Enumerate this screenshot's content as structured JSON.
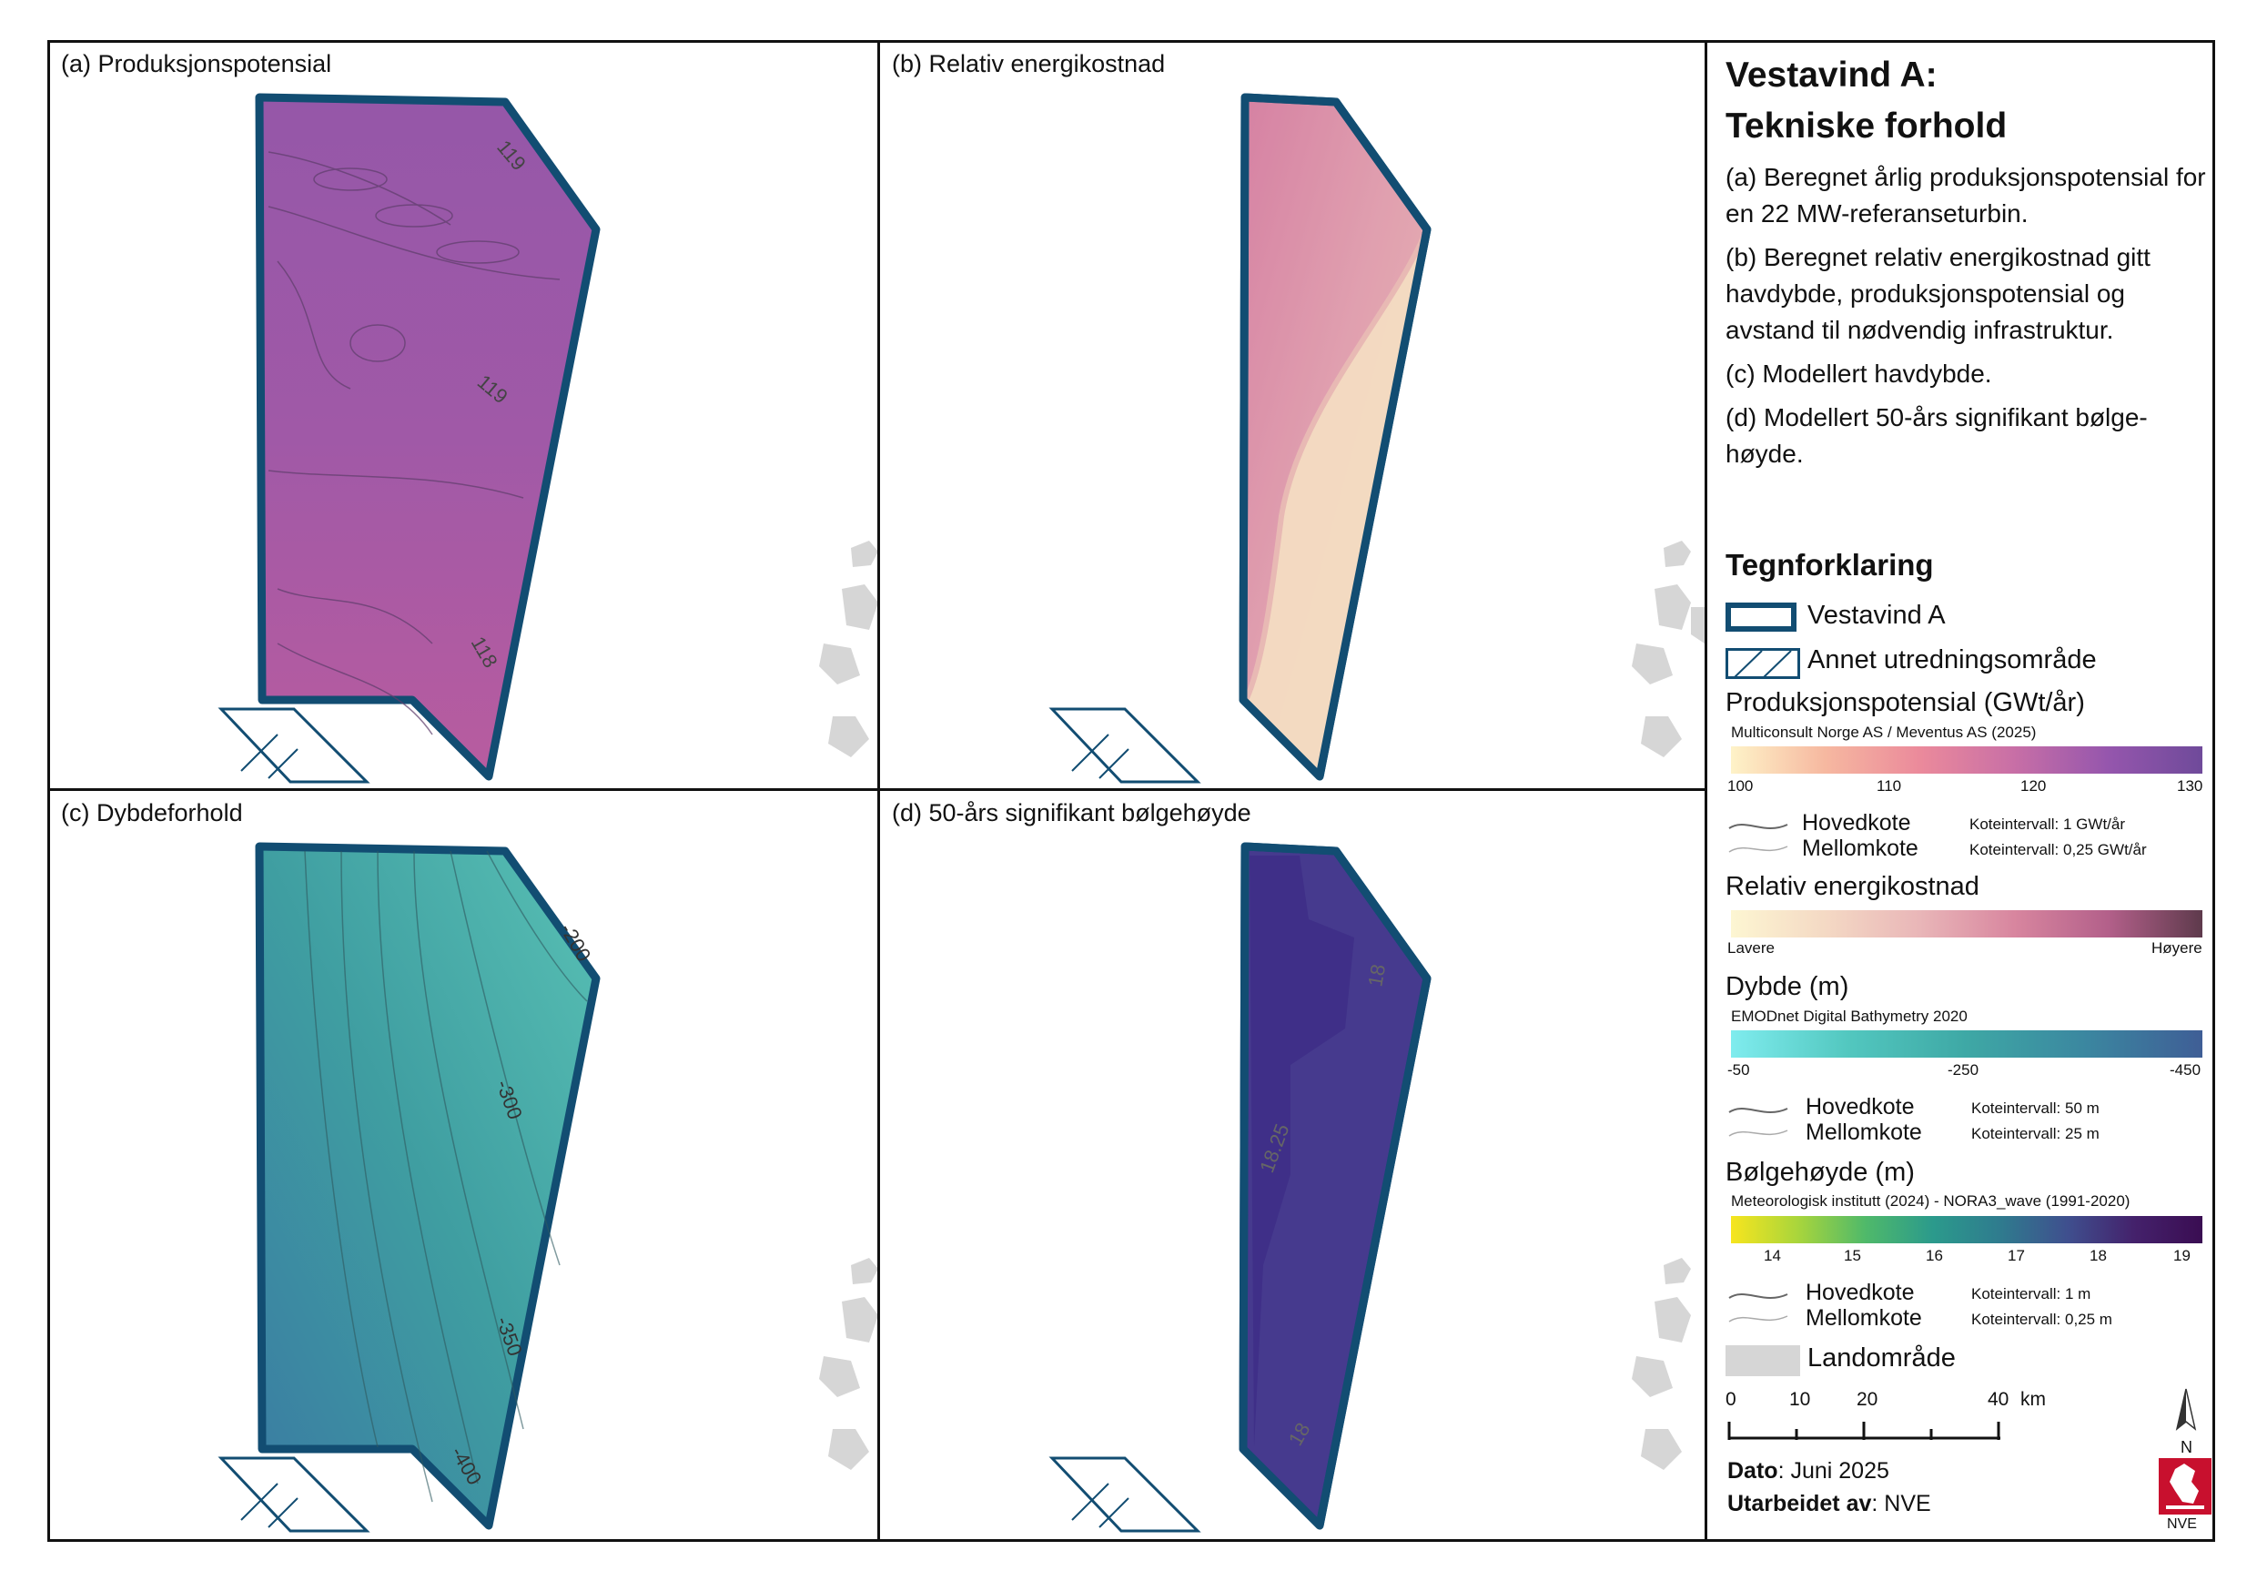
{
  "panels": [
    {
      "id": "a",
      "title": "(a) Produksjonspotensial",
      "contours": [
        "119",
        "119",
        "118"
      ]
    },
    {
      "id": "b",
      "title": "(b) Relativ energikostnad",
      "contours": []
    },
    {
      "id": "c",
      "title": "(c) Dybdeforhold",
      "contours": [
        "-200",
        "-300",
        "-350",
        "-400"
      ]
    },
    {
      "id": "d",
      "title": "(d) 50-års signifikant bølgehøyde",
      "contours": [
        "18",
        "18.25",
        "18"
      ]
    }
  ],
  "legend": {
    "title_line1": "Vestavind A:",
    "title_line2": "Tekniske forhold",
    "desc_a": "(a) Beregnet årlig produksjonspotensial for en 22 MW-referanseturbin.",
    "desc_b": "(b) Beregnet relativ energikostnad gitt havdybde, produksjonspotensial og avstand til nødvendig infrastruktur.",
    "desc_c": "(c) Modellert havdybde.",
    "desc_d": "(d) Modellert 50-års signifikant bølge-høyde.",
    "heading": "Tegnforklaring",
    "area_label": "Vestavind A",
    "other_label": "Annet utredningsområde",
    "prod": {
      "title": "Produksjonspotensial (GWt/år)",
      "source": "Multiconsult Norge AS / Meventus AS (2025)",
      "ticks": [
        "100",
        "110",
        "120",
        "130"
      ],
      "main_label": "Hovedkote",
      "minor_label": "Mellomkote",
      "main_interval": "Koteintervall: 1 GWt/år",
      "minor_interval": "Koteintervall: 0,25 GWt/år"
    },
    "cost": {
      "title": "Relativ energikostnad",
      "low": "Lavere",
      "high": "Høyere"
    },
    "depth": {
      "title": "Dybde (m)",
      "source": "EMODnet Digital Bathymetry 2020",
      "ticks": [
        "-50",
        "-250",
        "-450"
      ],
      "main_label": "Hovedkote",
      "minor_label": "Mellomkote",
      "main_interval": "Koteintervall: 50 m",
      "minor_interval": "Koteintervall: 25 m"
    },
    "wave": {
      "title": "Bølgehøyde (m)",
      "source": "Meteorologisk institutt (2024) - NORA3_wave (1991-2020)",
      "ticks": [
        "14",
        "15",
        "16",
        "17",
        "18",
        "19"
      ],
      "main_label": "Hovedkote",
      "minor_label": "Mellomkote",
      "main_interval": "Koteintervall: 1 m",
      "minor_interval": "Koteintervall: 0,25 m"
    },
    "land_label": "Landområde",
    "scale": {
      "ticks": [
        "0",
        "10",
        "20",
        "40"
      ],
      "unit": "km"
    },
    "north": "N",
    "date_label": "Dato",
    "date_value": ": Juni 2025",
    "author_label": "Utarbeidet av",
    "author_value": ": NVE",
    "logo_text": "NVE"
  },
  "colors": {
    "outline": "#124d72",
    "land": "#d6d6d6"
  }
}
